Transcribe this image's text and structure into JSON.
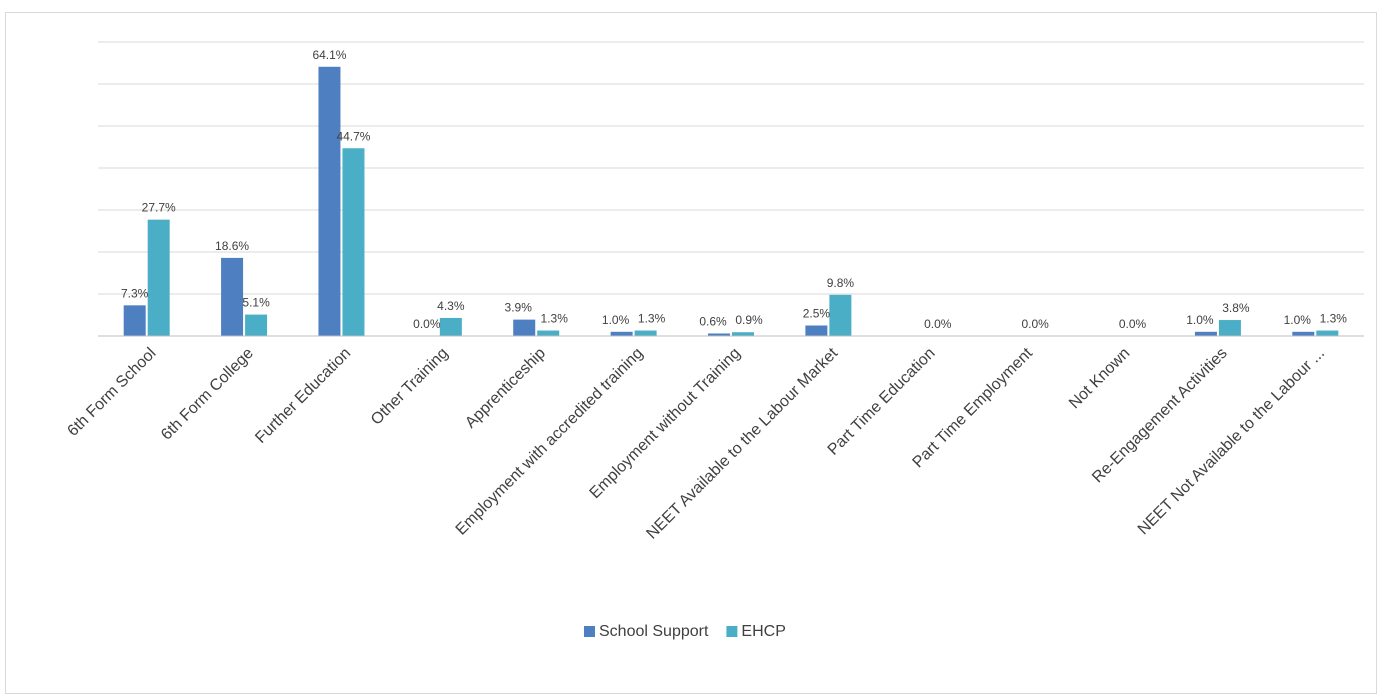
{
  "chart_data": {
    "type": "bar",
    "title": "",
    "xlabel": "",
    "ylabel": "",
    "ylim": [
      0,
      70
    ],
    "grid": true,
    "legend_position": "bottom",
    "categories": [
      "6th Form School",
      "6th Form College",
      "Further Education",
      "Other Training",
      "Apprenticeship",
      "Employment with accredited training",
      "Employment without Training",
      "NEET Available to the Labour Market",
      "Part Time Education",
      "Part Time Employment",
      "Not Known",
      "Re-Engagement Activities",
      "NEET Not Available to the Labour ..."
    ],
    "series": [
      {
        "name": "School Support",
        "color": "#4e7fc1",
        "values": [
          7.3,
          18.6,
          64.1,
          0.0,
          3.9,
          1.0,
          0.6,
          2.5,
          null,
          null,
          null,
          1.0,
          1.0
        ],
        "labels": [
          "7.3%",
          "18.6%",
          "64.1%",
          "0.0%",
          "3.9%",
          "1.0%",
          "0.6%",
          "2.5%",
          "",
          "",
          "",
          "1.0%",
          "1.0%"
        ]
      },
      {
        "name": "EHCP",
        "color": "#4aaec6",
        "values": [
          27.7,
          5.1,
          44.7,
          4.3,
          1.3,
          1.3,
          0.9,
          9.8,
          0.0,
          0.0,
          0.0,
          3.8,
          1.3
        ],
        "labels": [
          "27.7%",
          "5.1%",
          "44.7%",
          "4.3%",
          "1.3%",
          "1.3%",
          "0.9%",
          "9.8%",
          "0.0%",
          "0.0%",
          "0.0%",
          "3.8%",
          "1.3%"
        ]
      }
    ]
  }
}
